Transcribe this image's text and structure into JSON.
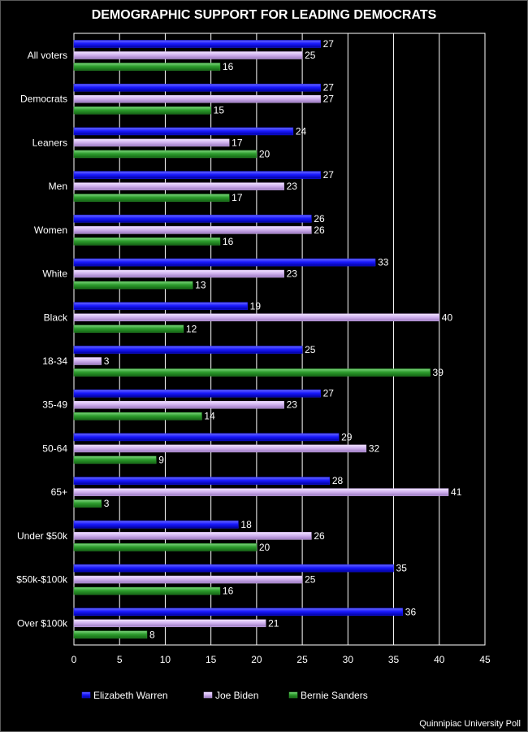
{
  "colors": {
    "background": "#000000",
    "plot_border": "#ffffff",
    "gridline": "#ffffff",
    "series": [
      "#1a1aff",
      "#d2b4f0",
      "#2e9e2e"
    ]
  },
  "source": "Quinnipiac University Poll",
  "chart_data": {
    "type": "bar",
    "orientation": "horizontal",
    "title": "DEMOGRAPHIC SUPPORT FOR LEADING DEMOCRATS",
    "xlabel": "",
    "ylabel": "",
    "xlim": [
      0,
      45
    ],
    "xticks": [
      0,
      5,
      10,
      15,
      20,
      25,
      30,
      35,
      40,
      45
    ],
    "grid": "vertical",
    "legend_position": "bottom",
    "categories": [
      "All voters",
      "Democrats",
      "Leaners",
      "Men",
      "Women",
      "White",
      "Black",
      "18-34",
      "35-49",
      "50-64",
      "65+",
      "Under $50k",
      "$50k-$100k",
      "Over $100k"
    ],
    "series": [
      {
        "name": "Elizabeth Warren",
        "values": [
          27,
          27,
          24,
          27,
          26,
          33,
          19,
          25,
          27,
          29,
          28,
          18,
          35,
          36
        ]
      },
      {
        "name": "Joe Biden",
        "values": [
          25,
          27,
          17,
          23,
          26,
          23,
          40,
          3,
          23,
          32,
          41,
          26,
          25,
          21
        ]
      },
      {
        "name": "Bernie Sanders",
        "values": [
          16,
          15,
          20,
          17,
          16,
          13,
          12,
          39,
          14,
          9,
          3,
          20,
          16,
          8
        ]
      }
    ]
  }
}
